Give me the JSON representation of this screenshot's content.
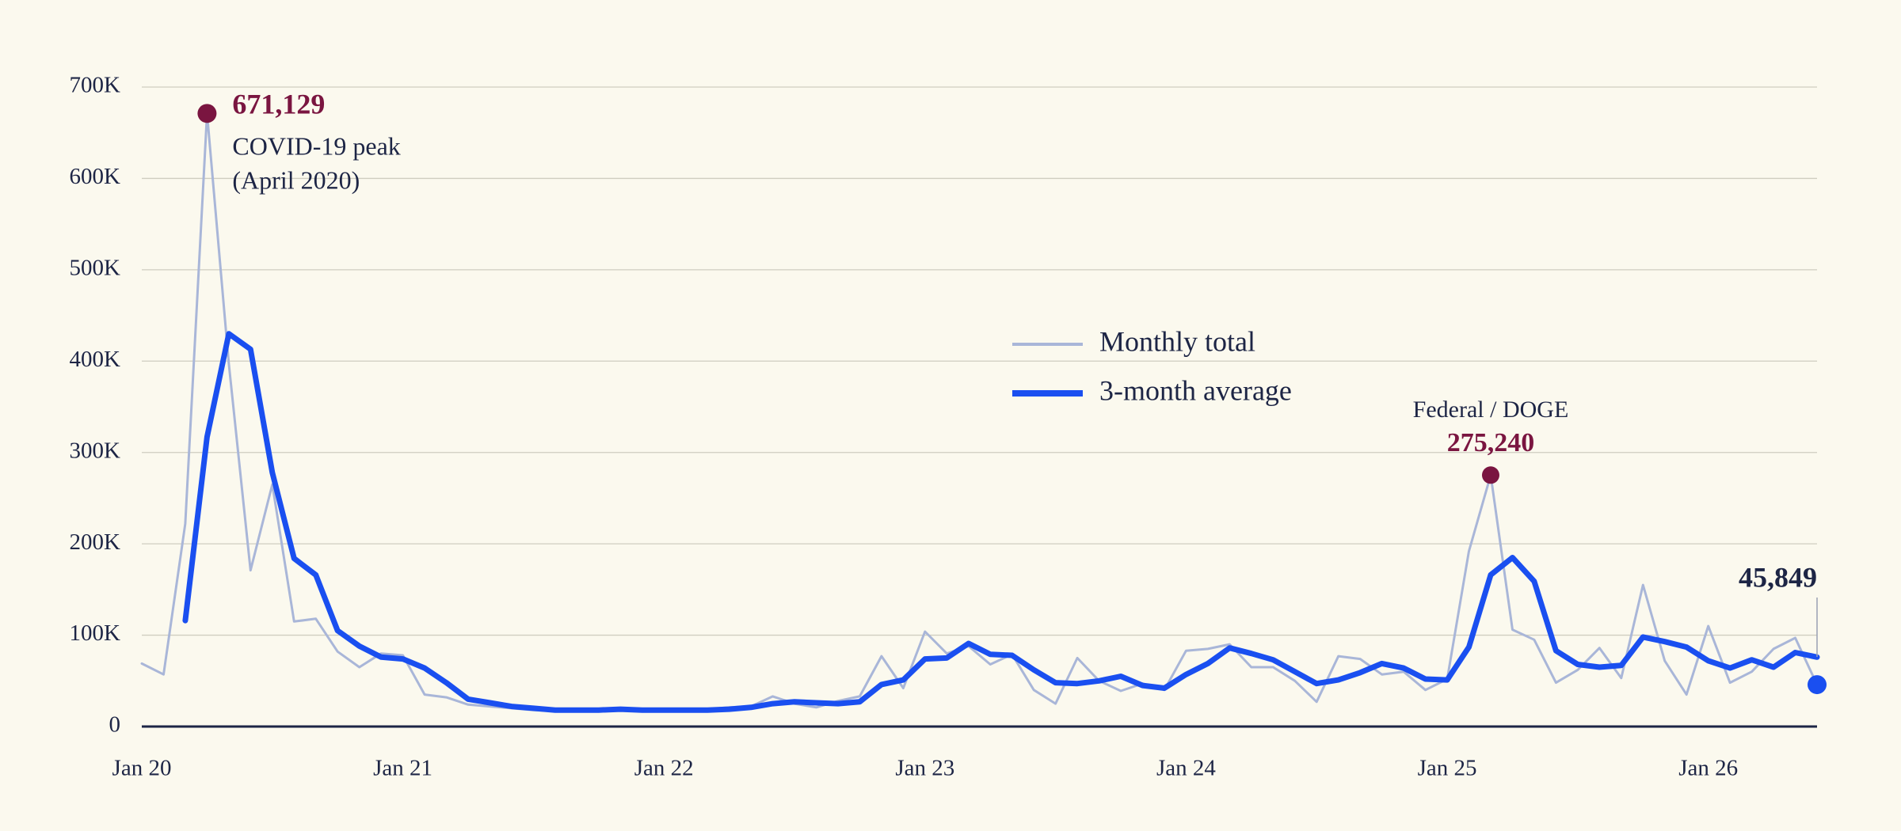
{
  "chart_data": {
    "type": "line",
    "categories": [
      "Jan 20",
      null,
      null,
      null,
      null,
      null,
      null,
      null,
      null,
      null,
      null,
      null,
      "Jan 21",
      null,
      null,
      null,
      null,
      null,
      null,
      null,
      null,
      null,
      null,
      null,
      "Jan 22",
      null,
      null,
      null,
      null,
      null,
      null,
      null,
      null,
      null,
      null,
      null,
      "Jan 23",
      null,
      null,
      null,
      null,
      null,
      null,
      null,
      null,
      null,
      null,
      null,
      "Jan 24",
      null,
      null,
      null,
      null,
      null,
      null,
      null,
      null,
      null,
      null,
      null,
      "Jan 25",
      null,
      null,
      null,
      null,
      null,
      null,
      null,
      null,
      null,
      null,
      null,
      "Jan 26",
      null,
      null,
      null,
      null,
      null
    ],
    "series": [
      {
        "name": "Monthly total",
        "color": "#a9b6d8",
        "values": [
          69000,
          57000,
          222000,
          671129,
          397000,
          171000,
          265000,
          115000,
          118000,
          82000,
          65000,
          80000,
          78000,
          35000,
          32000,
          24000,
          22000,
          20000,
          18000,
          17000,
          19000,
          18000,
          19000,
          18000,
          18000,
          18000,
          19000,
          21000,
          22000,
          33000,
          25000,
          21000,
          28000,
          33000,
          77000,
          42000,
          104000,
          80000,
          88000,
          68000,
          79000,
          40000,
          25000,
          75000,
          50000,
          39000,
          47000,
          40000,
          83000,
          85000,
          90000,
          65000,
          65000,
          50000,
          27000,
          77000,
          74000,
          57000,
          60000,
          40000,
          52000,
          192000,
          275240,
          106000,
          95000,
          48000,
          62000,
          86000,
          53000,
          155000,
          72000,
          35000,
          110000,
          48000,
          60000,
          85000,
          97000,
          45849
        ],
        "value_labels": [
          null,
          null,
          null,
          "671,129",
          null,
          null,
          null,
          null,
          null,
          null,
          null,
          null,
          null,
          null,
          null,
          null,
          null,
          null,
          null,
          null,
          null,
          null,
          null,
          null,
          null,
          null,
          null,
          null,
          null,
          null,
          null,
          null,
          null,
          null,
          null,
          null,
          null,
          null,
          null,
          null,
          null,
          null,
          null,
          null,
          null,
          null,
          null,
          null,
          null,
          null,
          null,
          null,
          null,
          null,
          null,
          null,
          null,
          null,
          null,
          null,
          null,
          null,
          "275,240",
          null,
          null,
          null,
          null,
          null,
          null,
          null,
          null,
          null,
          null,
          null,
          null,
          null,
          null,
          "45,849"
        ]
      },
      {
        "name": "3-month average",
        "color": "#1a4ff0",
        "values": [
          null,
          null,
          116000,
          317000,
          430000,
          413000,
          278000,
          184000,
          166000,
          105000,
          88000,
          76000,
          74000,
          64000,
          48000,
          30000,
          26000,
          22000,
          20000,
          18000,
          18000,
          18000,
          19000,
          18000,
          18000,
          18000,
          18000,
          19000,
          21000,
          25000,
          27000,
          26000,
          25000,
          27000,
          46000,
          51000,
          74000,
          75000,
          91000,
          79000,
          78000,
          62000,
          48000,
          47000,
          50000,
          55000,
          45000,
          42000,
          57000,
          69000,
          86000,
          80000,
          73000,
          60000,
          47000,
          51000,
          59000,
          69000,
          64000,
          52000,
          51000,
          87000,
          166000,
          185000,
          159000,
          83000,
          68000,
          65000,
          67000,
          98000,
          93000,
          87000,
          72000,
          64000,
          73000,
          65000,
          81000,
          76000
        ]
      }
    ],
    "annotations": [
      "COVID-19 peak",
      "(April 2020)",
      "Federal / DOGE"
    ],
    "highlight_color": "#7a1540",
    "ylim": [
      0,
      700000
    ],
    "yticks": [
      0,
      {
        "value": 100000,
        "label": "100K"
      },
      {
        "value": 200000,
        "label": "200K"
      },
      {
        "value": 300000,
        "label": "300K"
      },
      {
        "value": 400000,
        "label": "400K"
      },
      {
        "value": 500000,
        "label": "500K"
      },
      {
        "value": 600000,
        "label": "600K"
      },
      {
        "value": 700000,
        "label": "700K"
      }
    ],
    "grid": true
  }
}
